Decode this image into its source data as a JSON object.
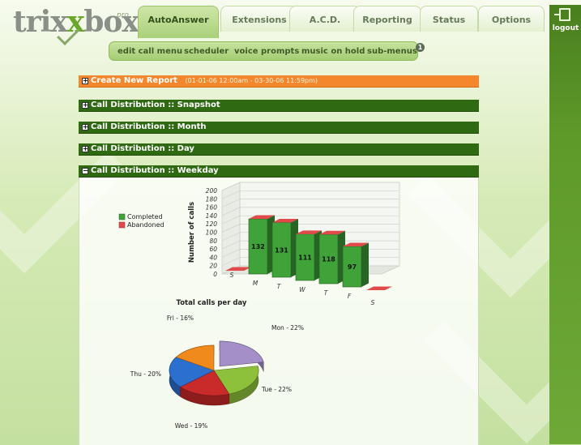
{
  "branding": {
    "logo_main": "trix",
    "logo_x": "x",
    "logo_tail": "box",
    "logo_pro": "pro"
  },
  "tabs": [
    {
      "label": "AutoAnswer",
      "active": true
    },
    {
      "label": "Extensions"
    },
    {
      "label": "A.C.D."
    },
    {
      "label": "Reporting"
    },
    {
      "label": "Status"
    },
    {
      "label": "Options"
    }
  ],
  "subnav": {
    "items": [
      "edit call menu",
      "scheduler",
      "voice prompts",
      "music on hold",
      "sub-menus"
    ],
    "badge": "1"
  },
  "logout": {
    "label": "logout",
    "icon": "door-exit-icon"
  },
  "sections": [
    {
      "label": "Create New Report",
      "range": "(01-01-06 12:00am - 03-30-06 11:59pm)",
      "toggle": "+",
      "color": "#f4872b"
    },
    {
      "label": "Call Distribution :: Snapshot",
      "toggle": "+"
    },
    {
      "label": "Call Distribution :: Month",
      "toggle": "+"
    },
    {
      "label": "Call Distribution :: Day",
      "toggle": "+"
    },
    {
      "label": "Call Distribution :: Weekday",
      "toggle": "−"
    }
  ],
  "chart_data": [
    {
      "type": "bar",
      "ylabel": "Number of calls",
      "ylim": [
        0,
        200
      ],
      "yticks": [
        0,
        20,
        40,
        60,
        80,
        100,
        120,
        140,
        160,
        180,
        200
      ],
      "categories": [
        "S",
        "M",
        "T",
        "W",
        "T",
        "F",
        "S"
      ],
      "series": [
        {
          "name": "Completed",
          "color": "#3fa33a",
          "values": [
            0,
            132,
            131,
            111,
            118,
            97,
            0
          ]
        },
        {
          "name": "Abandoned",
          "color": "#e04a4a",
          "values": [
            0,
            0,
            0,
            0,
            0,
            0,
            0
          ]
        }
      ],
      "data_labels": [
        "",
        "132",
        "131",
        "111",
        "118",
        "97",
        ""
      ],
      "legend": "left"
    },
    {
      "type": "pie",
      "title": "Total calls per day",
      "slices": [
        {
          "label": "Mon - 22%",
          "value": 22,
          "color": "#a58fc9"
        },
        {
          "label": "Tue - 22%",
          "value": 22,
          "color": "#8ec13b"
        },
        {
          "label": "Wed - 19%",
          "value": 19,
          "color": "#c92a2a"
        },
        {
          "label": "Thu - 20%",
          "value": 20,
          "color": "#2b6fcf"
        },
        {
          "label": "Fri - 16%",
          "value": 16,
          "color": "#f08a1c"
        }
      ]
    }
  ]
}
